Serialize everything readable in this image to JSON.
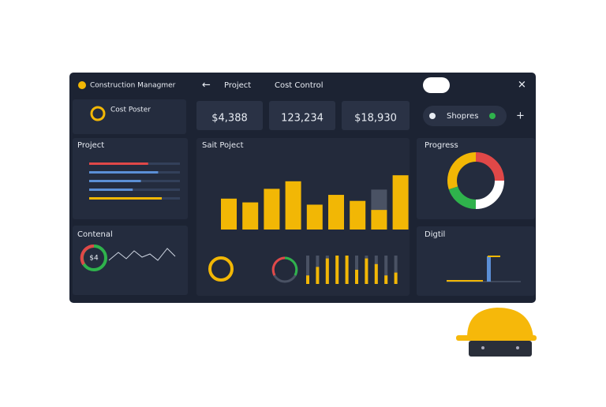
{
  "header": {
    "app_title": "Construction Managmer",
    "nav": [
      "Project",
      "Cost Control"
    ]
  },
  "stats": [
    "$4,388",
    "123,234",
    "$18,930"
  ],
  "sidebar": {
    "card_title": "Cost Poster",
    "project_title": "Project",
    "project_bars": {
      "values": [
        65,
        76,
        57,
        48,
        80
      ],
      "colors": [
        "#e04848",
        "#5b8fd6",
        "#5b8fd6",
        "#5b8fd6",
        "#f2b705"
      ]
    },
    "content_title": "Contenal",
    "content_label": "$4"
  },
  "main_chart": {
    "title": "Sait Poject",
    "values": [
      41,
      36,
      54,
      64,
      33,
      46,
      38,
      26,
      72
    ],
    "ghost": [
      null,
      null,
      null,
      null,
      null,
      null,
      null,
      53,
      null
    ],
    "ylim": [
      0,
      90
    ],
    "color": "#f2b705",
    "ghost_color": "#4a5264"
  },
  "mini_bars": [
    30,
    60,
    90,
    100,
    100,
    50,
    90,
    70,
    30,
    40
  ],
  "right": {
    "pill": "Shopres",
    "progress_title": "Progress",
    "progress": {
      "values": [
        25,
        25,
        20,
        30
      ],
      "colors": [
        "#e04848",
        "#ffffff",
        "#2fb24c",
        "#f2b705"
      ]
    },
    "digital_title": "Digtil"
  }
}
